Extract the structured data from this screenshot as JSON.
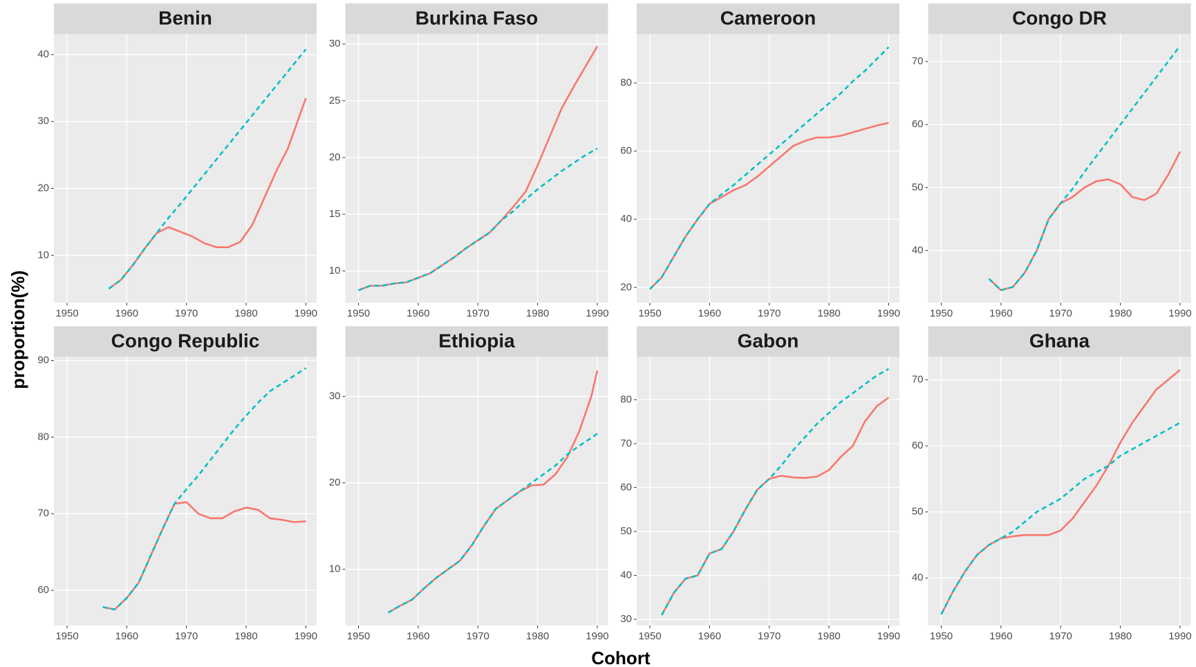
{
  "x_label": "Cohort",
  "y_label": "proportion(%)",
  "chart_data": [
    {
      "type": "line",
      "title": "Benin",
      "x": [
        1957,
        1959,
        1961,
        1963,
        1965,
        1967,
        1969,
        1971,
        1973,
        1975,
        1977,
        1979,
        1981,
        1983,
        1985,
        1987,
        1989,
        1990
      ],
      "series": [
        {
          "color": "#F8766D",
          "dash": false,
          "values": [
            5,
            6.3,
            8.5,
            11,
            13.3,
            14.2,
            13.5,
            12.8,
            11.8,
            11.2,
            11.2,
            12,
            14.5,
            18.5,
            22.5,
            26,
            31,
            33.5
          ]
        },
        {
          "color": "#00BFC4",
          "dash": true,
          "values": [
            5,
            6.3,
            8.5,
            11,
            13.3,
            15.6,
            17.7,
            19.9,
            22.1,
            24.3,
            26.5,
            28.7,
            30.9,
            33.1,
            35.3,
            37.5,
            39.7,
            40.8
          ]
        }
      ],
      "xlim": [
        1947.8,
        1991.8
      ],
      "xticks": [
        1950,
        1960,
        1970,
        1980,
        1990
      ],
      "ylim": [
        2.9,
        43.1
      ],
      "yticks": [
        10,
        20,
        30,
        40
      ],
      "grid": true
    },
    {
      "type": "line",
      "title": "Burkina Faso",
      "x": [
        1950,
        1952,
        1954,
        1956,
        1958,
        1960,
        1962,
        1964,
        1966,
        1968,
        1970,
        1972,
        1974,
        1976,
        1978,
        1980,
        1982,
        1984,
        1986,
        1988,
        1990
      ],
      "series": [
        {
          "color": "#F8766D",
          "dash": false,
          "values": [
            8.3,
            8.7,
            8.7,
            8.9,
            9,
            9.4,
            9.8,
            10.5,
            11.2,
            12,
            12.7,
            13.4,
            14.5,
            15.7,
            17,
            19.3,
            21.8,
            24.3,
            26.2,
            28,
            29.8
          ]
        },
        {
          "color": "#00BFC4",
          "dash": true,
          "values": [
            8.3,
            8.7,
            8.7,
            8.9,
            9,
            9.4,
            9.8,
            10.5,
            11.2,
            12,
            12.7,
            13.4,
            14.5,
            15.3,
            16.3,
            17.2,
            18,
            18.8,
            19.5,
            20.2,
            20.8
          ]
        }
      ],
      "xlim": [
        1947.8,
        1991.8
      ],
      "xticks": [
        1950,
        1960,
        1970,
        1980,
        1990
      ],
      "ylim": [
        7.2,
        30.9
      ],
      "yticks": [
        10,
        15,
        20,
        25,
        30
      ],
      "grid": true
    },
    {
      "type": "line",
      "title": "Cameroon",
      "x": [
        1950,
        1952,
        1954,
        1956,
        1958,
        1960,
        1962,
        1964,
        1966,
        1968,
        1970,
        1972,
        1974,
        1976,
        1978,
        1980,
        1982,
        1984,
        1986,
        1988,
        1990
      ],
      "series": [
        {
          "color": "#F8766D",
          "dash": false,
          "values": [
            19.5,
            23,
            29,
            35,
            40,
            44.5,
            46.5,
            48.5,
            50,
            52.5,
            55.5,
            58.5,
            61.5,
            63,
            64,
            64,
            64.5,
            65.5,
            66.5,
            67.5,
            68.3
          ]
        },
        {
          "color": "#00BFC4",
          "dash": true,
          "values": [
            19.5,
            23,
            29,
            35,
            40,
            44.5,
            47.3,
            50,
            53,
            56,
            59,
            62,
            65,
            68,
            71,
            74,
            77,
            80.5,
            83.5,
            87,
            90.5
          ]
        }
      ],
      "xlim": [
        1947.8,
        1991.8
      ],
      "xticks": [
        1950,
        1960,
        1970,
        1980,
        1990
      ],
      "ylim": [
        15.5,
        94.4
      ],
      "yticks": [
        20,
        40,
        60,
        80
      ],
      "grid": true
    },
    {
      "type": "line",
      "title": "Congo DR",
      "x": [
        1958,
        1960,
        1962,
        1964,
        1966,
        1968,
        1970,
        1972,
        1974,
        1976,
        1978,
        1980,
        1982,
        1984,
        1986,
        1988,
        1990
      ],
      "series": [
        {
          "color": "#F8766D",
          "dash": false,
          "values": [
            35.5,
            33.7,
            34.2,
            36.5,
            40,
            45,
            47.5,
            48.5,
            50,
            51,
            51.3,
            50.5,
            48.5,
            48,
            49,
            52,
            55.7
          ]
        },
        {
          "color": "#00BFC4",
          "dash": true,
          "values": [
            35.5,
            33.7,
            34.2,
            36.5,
            40,
            45,
            47.5,
            49.8,
            52.5,
            55,
            57.5,
            60,
            62.5,
            65,
            67.5,
            70,
            72.5
          ]
        }
      ],
      "xlim": [
        1947.8,
        1991.8
      ],
      "xticks": [
        1950,
        1960,
        1970,
        1980,
        1990
      ],
      "ylim": [
        31.7,
        74.4
      ],
      "yticks": [
        40,
        50,
        60,
        70
      ],
      "grid": true
    },
    {
      "type": "line",
      "title": "Congo Republic",
      "x": [
        1956,
        1958,
        1960,
        1962,
        1964,
        1966,
        1968,
        1970,
        1972,
        1974,
        1976,
        1978,
        1980,
        1982,
        1984,
        1986,
        1988,
        1990
      ],
      "series": [
        {
          "color": "#F8766D",
          "dash": false,
          "values": [
            57.8,
            57.5,
            59,
            61,
            64.5,
            68,
            71.3,
            71.5,
            70,
            69.4,
            69.4,
            70.3,
            70.8,
            70.5,
            69.4,
            69.2,
            68.9,
            69
          ]
        },
        {
          "color": "#00BFC4",
          "dash": true,
          "values": [
            57.8,
            57.5,
            59,
            61,
            64.5,
            68,
            71.3,
            73.2,
            75,
            77,
            79,
            81,
            82.8,
            84.5,
            86,
            87,
            88,
            89
          ]
        }
      ],
      "xlim": [
        1947.8,
        1991.8
      ],
      "xticks": [
        1950,
        1960,
        1970,
        1980,
        1990
      ],
      "ylim": [
        55.4,
        90.5
      ],
      "yticks": [
        60,
        70,
        80,
        90
      ],
      "grid": true
    },
    {
      "type": "line",
      "title": "Ethiopia",
      "x": [
        1955,
        1957,
        1959,
        1961,
        1963,
        1965,
        1967,
        1969,
        1971,
        1973,
        1975,
        1977,
        1979,
        1981,
        1983,
        1985,
        1987,
        1989,
        1990
      ],
      "series": [
        {
          "color": "#F8766D",
          "dash": false,
          "values": [
            5,
            5.8,
            6.5,
            7.8,
            9,
            10,
            11,
            12.8,
            15,
            17,
            18,
            19,
            19.7,
            19.8,
            21,
            23,
            26,
            30,
            33
          ]
        },
        {
          "color": "#00BFC4",
          "dash": true,
          "values": [
            5,
            5.8,
            6.5,
            7.8,
            9,
            10,
            11,
            12.8,
            15,
            17,
            18,
            19,
            20,
            21,
            22,
            23.3,
            24.3,
            25.2,
            25.7
          ]
        }
      ],
      "xlim": [
        1947.8,
        1991.8
      ],
      "xticks": [
        1950,
        1960,
        1970,
        1980,
        1990
      ],
      "ylim": [
        3.5,
        34.6
      ],
      "yticks": [
        10,
        20,
        30
      ],
      "grid": true
    },
    {
      "type": "line",
      "title": "Gabon",
      "x": [
        1952,
        1954,
        1956,
        1958,
        1960,
        1962,
        1964,
        1966,
        1968,
        1970,
        1972,
        1974,
        1976,
        1978,
        1980,
        1982,
        1984,
        1986,
        1988,
        1990
      ],
      "series": [
        {
          "color": "#F8766D",
          "dash": false,
          "values": [
            31,
            36,
            39.3,
            40,
            45,
            46,
            50,
            55,
            59.5,
            62,
            62.7,
            62.3,
            62.2,
            62.5,
            64,
            67,
            69.5,
            75,
            78.5,
            80.5
          ]
        },
        {
          "color": "#00BFC4",
          "dash": true,
          "values": [
            31,
            36,
            39.3,
            40,
            45,
            46,
            50,
            55,
            59.5,
            62,
            65,
            68.5,
            71.5,
            74.5,
            77,
            79.5,
            81.5,
            83.5,
            85.5,
            87
          ]
        }
      ],
      "xlim": [
        1947.8,
        1991.8
      ],
      "xticks": [
        1950,
        1960,
        1970,
        1980,
        1990
      ],
      "ylim": [
        28.6,
        89.8
      ],
      "yticks": [
        30,
        40,
        50,
        60,
        70,
        80
      ],
      "grid": true
    },
    {
      "type": "line",
      "title": "Ghana",
      "x": [
        1950,
        1952,
        1954,
        1956,
        1958,
        1960,
        1962,
        1964,
        1966,
        1968,
        1970,
        1972,
        1974,
        1976,
        1978,
        1980,
        1982,
        1984,
        1986,
        1988,
        1990
      ],
      "series": [
        {
          "color": "#F8766D",
          "dash": false,
          "values": [
            34.5,
            38,
            41,
            43.5,
            45,
            46,
            46.3,
            46.5,
            46.5,
            46.5,
            47.2,
            49,
            51.5,
            54,
            57,
            60.5,
            63.5,
            66,
            68.5,
            70,
            71.5
          ]
        },
        {
          "color": "#00BFC4",
          "dash": true,
          "values": [
            34.5,
            38,
            41,
            43.5,
            45,
            46,
            47,
            48.5,
            50,
            51,
            52,
            53.5,
            55,
            56,
            57,
            58.5,
            59.5,
            60.5,
            61.5,
            62.5,
            63.5
          ]
        }
      ],
      "xlim": [
        1947.8,
        1991.8
      ],
      "xticks": [
        1950,
        1960,
        1970,
        1980,
        1990
      ],
      "ylim": [
        32.8,
        73.5
      ],
      "yticks": [
        40,
        50,
        60,
        70
      ],
      "grid": true
    }
  ]
}
